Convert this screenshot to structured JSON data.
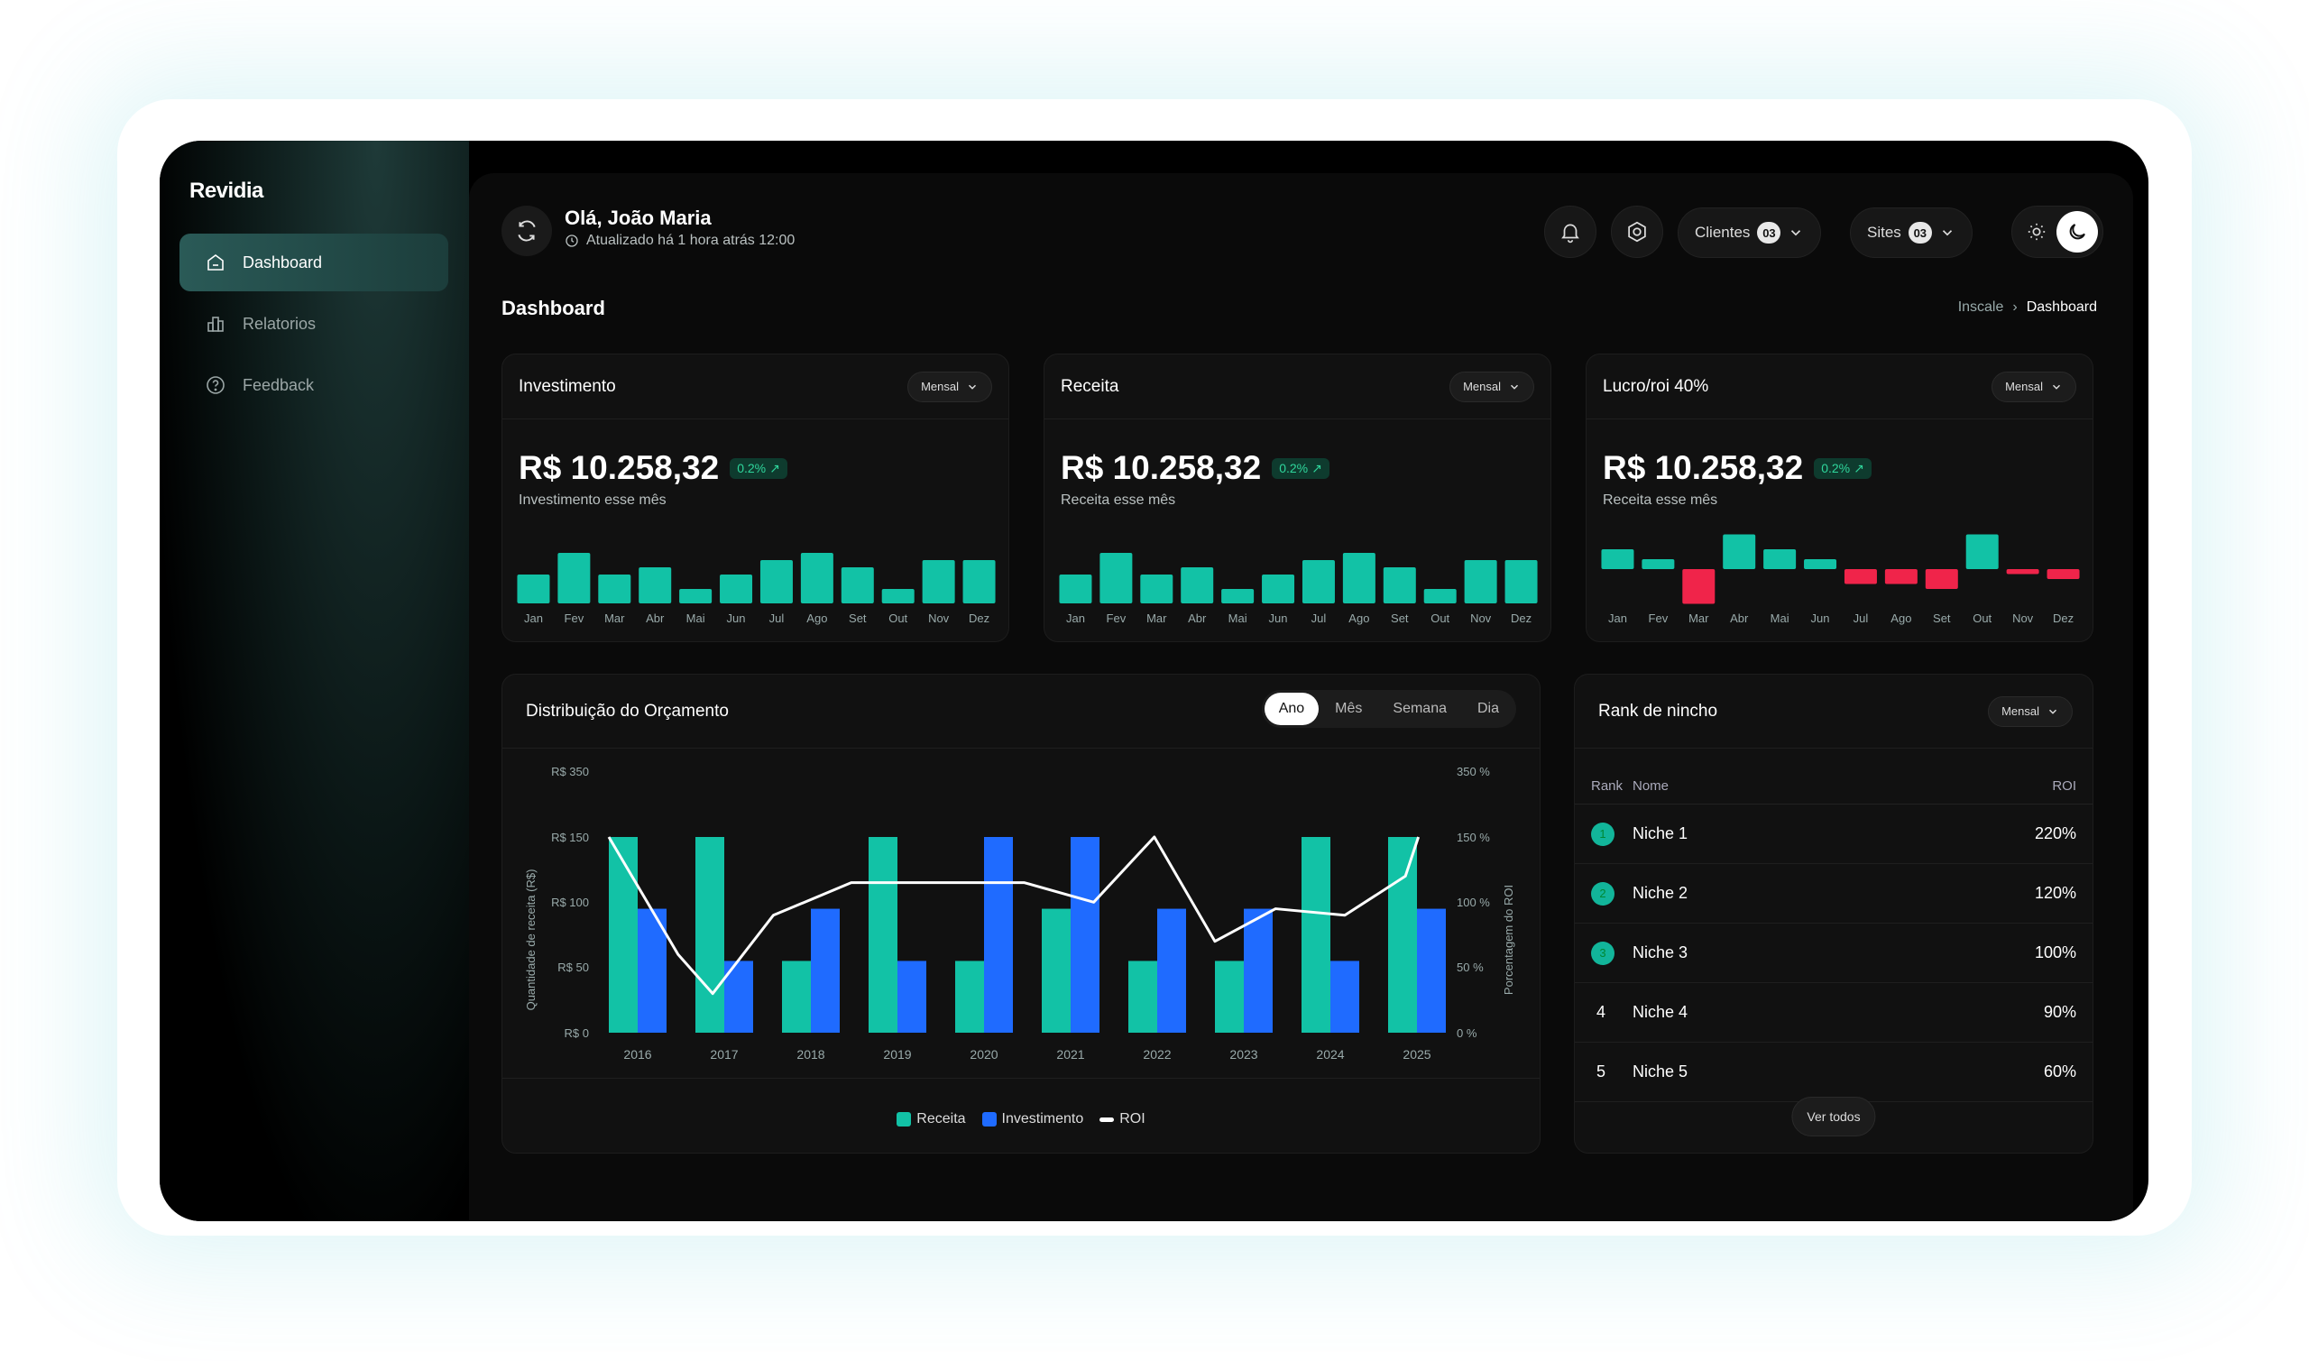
{
  "app": {
    "logo": "Revidia"
  },
  "sidebar": {
    "items": [
      {
        "label": "Dashboard",
        "icon": "home-icon",
        "active": true
      },
      {
        "label": "Relatorios",
        "icon": "chart-icon",
        "active": false
      },
      {
        "label": "Feedback",
        "icon": "help-circle-icon",
        "active": false
      }
    ]
  },
  "header": {
    "greeting": "Olá, João Maria",
    "updated": "Atualizado há 1 hora atrás 12:00",
    "clients_label": "Clientes",
    "clients_count": "03",
    "sites_label": "Sites",
    "sites_count": "03"
  },
  "page": {
    "title": "Dashboard",
    "breadcrumb": [
      "Inscale",
      "Dashboard"
    ]
  },
  "colors": {
    "accent": "#12c2a6",
    "blue": "#1f6bff",
    "negative": "#f0244a",
    "positive": "#2fd69c"
  },
  "kpis": [
    {
      "title": "Investimento",
      "period": "Mensal",
      "value": "R$ 10.258,32",
      "delta": "0.2%",
      "sub": "Investimento esse mês",
      "months": [
        "Jan",
        "Fev",
        "Mar",
        "Abr",
        "Mai",
        "Jun",
        "Jul",
        "Ago",
        "Set",
        "Out",
        "Nov",
        "Dez"
      ],
      "values": [
        4,
        7,
        4,
        5,
        2,
        4,
        6,
        7,
        5,
        2,
        6,
        6
      ]
    },
    {
      "title": "Receita",
      "period": "Mensal",
      "value": "R$ 10.258,32",
      "delta": "0.2%",
      "sub": "Receita esse mês",
      "months": [
        "Jan",
        "Fev",
        "Mar",
        "Abr",
        "Mai",
        "Jun",
        "Jul",
        "Ago",
        "Set",
        "Out",
        "Nov",
        "Dez"
      ],
      "values": [
        4,
        7,
        4,
        5,
        2,
        4,
        6,
        7,
        5,
        2,
        6,
        6
      ]
    },
    {
      "title": "Lucro/roi  40%",
      "period": "Mensal",
      "value": "R$ 10.258,32",
      "delta": "0.2%",
      "sub": "Receita esse mês",
      "months": [
        "Jan",
        "Fev",
        "Mar",
        "Abr",
        "Mai",
        "Jun",
        "Jul",
        "Ago",
        "Set",
        "Out",
        "Nov",
        "Dez"
      ],
      "values": [
        2,
        1,
        -3.5,
        3.5,
        2,
        1,
        -1.5,
        -1.5,
        -2,
        3.5,
        -0.5,
        -1
      ]
    }
  ],
  "chart_data": {
    "type": "bar",
    "title": "Distribuição do Orçamento",
    "tabs": [
      "Ano",
      "Mês",
      "Semana",
      "Dia"
    ],
    "active_tab": "Ano",
    "categories": [
      "2016",
      "2017",
      "2018",
      "2019",
      "2020",
      "2021",
      "2022",
      "2023",
      "2024",
      "2025"
    ],
    "y_ticks": [
      "R$ 0",
      "R$ 50",
      "R$ 100",
      "R$ 150",
      "R$ 350"
    ],
    "y2_ticks": [
      "0 %",
      "50 %",
      "100 %",
      "150 %",
      "350 %"
    ],
    "ylabel": "Quantidade de receita (R$)",
    "y2label": "Porcentagem do ROI",
    "series": [
      {
        "name": "Receita",
        "values": [
          150,
          150,
          55,
          150,
          55,
          95,
          55,
          55,
          150,
          150
        ]
      },
      {
        "name": "Investimento",
        "values": [
          95,
          55,
          95,
          55,
          150,
          150,
          95,
          95,
          55,
          95
        ]
      }
    ],
    "roi": {
      "name": "ROI",
      "x": [
        2016,
        2016.8,
        2017.2,
        2017.9,
        2018.8,
        2019.8,
        2020.8,
        2021.6,
        2022.3,
        2023,
        2023.7,
        2024.5,
        2025.2,
        2025.35
      ],
      "values": [
        150,
        60,
        30,
        90,
        115,
        115,
        115,
        100,
        150,
        70,
        95,
        90,
        120,
        150
      ]
    }
  },
  "rank": {
    "title": "Rank de nincho",
    "period": "Mensal",
    "headers": {
      "rank": "Rank",
      "name": "Nome",
      "roi": "ROI"
    },
    "rows": [
      {
        "rank": "1",
        "name": "Niche 1",
        "roi": "220%"
      },
      {
        "rank": "2",
        "name": "Niche 2",
        "roi": "120%"
      },
      {
        "rank": "3",
        "name": "Niche 3",
        "roi": "100%"
      },
      {
        "rank": "4",
        "name": "Niche 4",
        "roi": "90%"
      },
      {
        "rank": "5",
        "name": "Niche 5",
        "roi": "60%"
      }
    ],
    "see_all": "Ver todos"
  }
}
